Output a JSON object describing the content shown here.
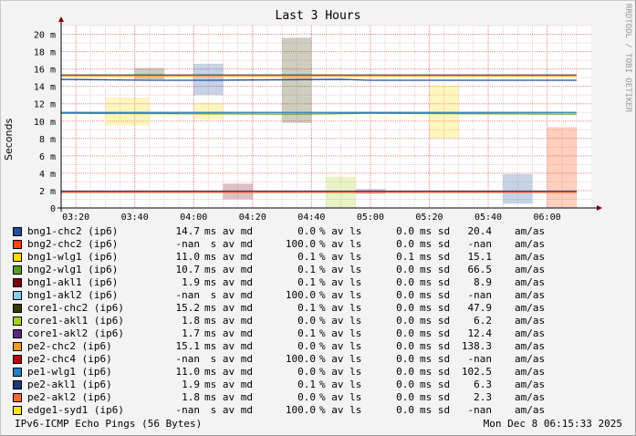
{
  "chart_data": {
    "type": "line",
    "title": "Last 3 Hours",
    "ylabel": "Seconds",
    "xlabel": "",
    "ylim": [
      0,
      21
    ],
    "yticks": [
      {
        "v": 0,
        "t": "0"
      },
      {
        "v": 2,
        "t": "2 m"
      },
      {
        "v": 4,
        "t": "4 m"
      },
      {
        "v": 6,
        "t": "6 m"
      },
      {
        "v": 8,
        "t": "8 m"
      },
      {
        "v": 10,
        "t": "10 m"
      },
      {
        "v": 12,
        "t": "12 m"
      },
      {
        "v": 14,
        "t": "14 m"
      },
      {
        "v": 16,
        "t": "16 m"
      },
      {
        "v": 18,
        "t": "18 m"
      },
      {
        "v": 20,
        "t": "20 m"
      }
    ],
    "xlim": [
      "03:15",
      "06:15"
    ],
    "xticks": [
      "03:20",
      "03:40",
      "04:00",
      "04:20",
      "04:40",
      "05:00",
      "05:20",
      "05:40",
      "06:00"
    ],
    "grid": true,
    "legend_position": "bottom",
    "series": [
      {
        "name": "bng1-chc2 (ip6)",
        "color": "#1f4e9a",
        "median_ms": 14.7,
        "x": [
          "03:15",
          "03:45",
          "04:05",
          "04:50",
          "05:00",
          "06:10"
        ],
        "y": [
          14.8,
          14.7,
          14.7,
          14.8,
          14.7,
          14.7
        ],
        "bands": [
          {
            "from": "04:00",
            "to": "04:10",
            "lo": 13.0,
            "hi": 16.6
          },
          {
            "from": "05:45",
            "to": "05:55",
            "lo": 0.5,
            "hi": 3.9
          }
        ]
      },
      {
        "name": "bng2-chc2 (ip6)",
        "color": "#ff4500",
        "median_ms": null,
        "x": [],
        "y": [],
        "bands": [
          {
            "from": "06:00",
            "to": "06:10",
            "lo": 0.0,
            "hi": 9.3
          }
        ]
      },
      {
        "name": "bng1-wlg1 (ip6)",
        "color": "#ffd800",
        "median_ms": 11.0,
        "x": [
          "03:15",
          "04:40",
          "05:20",
          "06:10"
        ],
        "y": [
          11.0,
          11.0,
          11.0,
          11.0
        ],
        "bands": [
          {
            "from": "03:30",
            "to": "03:45",
            "lo": 9.5,
            "hi": 12.7
          },
          {
            "from": "04:00",
            "to": "04:10",
            "lo": 10.2,
            "hi": 12.1
          },
          {
            "from": "05:20",
            "to": "05:30",
            "lo": 8.0,
            "hi": 14.1
          }
        ]
      },
      {
        "name": "bng2-wlg1 (ip6)",
        "color": "#5c9a2a",
        "median_ms": 10.7,
        "x": [
          "03:15",
          "04:35",
          "05:00",
          "06:10"
        ],
        "y": [
          10.9,
          10.8,
          10.9,
          10.8
        ],
        "bands": []
      },
      {
        "name": "bng1-akl1 (ip6)",
        "color": "#7a0010",
        "median_ms": 1.9,
        "x": [
          "03:15",
          "04:30",
          "05:30",
          "06:10"
        ],
        "y": [
          1.9,
          1.9,
          1.9,
          1.9
        ],
        "bands": [
          {
            "from": "04:10",
            "to": "04:20",
            "lo": 1.0,
            "hi": 2.8
          }
        ]
      },
      {
        "name": "bng1-akl2 (ip6)",
        "color": "#8fc8f0",
        "median_ms": null,
        "x": [],
        "y": [],
        "bands": []
      },
      {
        "name": "core1-chc2 (ip6)",
        "color": "#3a3a00",
        "median_ms": 15.2,
        "x": [
          "03:15",
          "04:50",
          "05:00",
          "06:10"
        ],
        "y": [
          15.3,
          15.3,
          15.3,
          15.3
        ],
        "bands": [
          {
            "from": "04:30",
            "to": "04:40",
            "lo": 9.8,
            "hi": 19.6
          },
          {
            "from": "03:40",
            "to": "03:50",
            "lo": 14.8,
            "hi": 16.1
          }
        ]
      },
      {
        "name": "core1-akl1 (ip6)",
        "color": "#a8d020",
        "median_ms": 1.8,
        "x": [
          "03:15",
          "06:10"
        ],
        "y": [
          1.8,
          1.8
        ],
        "bands": [
          {
            "from": "04:45",
            "to": "04:55",
            "lo": 0.0,
            "hi": 3.6
          }
        ]
      },
      {
        "name": "core1-akl2 (ip6)",
        "color": "#5a2a7a",
        "median_ms": 1.7,
        "x": [
          "03:15",
          "06:10"
        ],
        "y": [
          1.8,
          1.8
        ],
        "bands": [
          {
            "from": "04:55",
            "to": "05:05",
            "lo": 1.6,
            "hi": 2.2
          }
        ]
      },
      {
        "name": "pe2-chc2 (ip6)",
        "color": "#ff9a20",
        "median_ms": 15.1,
        "x": [
          "03:15",
          "06:10"
        ],
        "y": [
          15.2,
          15.2
        ],
        "bands": []
      },
      {
        "name": "pe2-chc4 (ip6)",
        "color": "#c00000",
        "median_ms": null,
        "x": [],
        "y": [],
        "bands": []
      },
      {
        "name": "pe1-wlg1 (ip6)",
        "color": "#2080c8",
        "median_ms": 11.0,
        "x": [
          "03:15",
          "06:10"
        ],
        "y": [
          11.0,
          11.0
        ],
        "bands": []
      },
      {
        "name": "pe2-akl1 (ip6)",
        "color": "#1a3a7a",
        "median_ms": 1.9,
        "x": [
          "03:15",
          "06:10"
        ],
        "y": [
          1.9,
          1.9
        ],
        "bands": []
      },
      {
        "name": "pe2-akl2 (ip6)",
        "color": "#ff6a30",
        "median_ms": 1.8,
        "x": [
          "03:15",
          "06:10"
        ],
        "y": [
          1.8,
          1.8
        ],
        "bands": []
      },
      {
        "name": "edge1-syd1 (ip6)",
        "color": "#ffe030",
        "median_ms": null,
        "x": [],
        "y": [],
        "bands": []
      }
    ]
  },
  "watermark": "RRDTOOL / TOBI OETIKER",
  "legend": [
    {
      "name": "bng1-chc2 (ip6)",
      "color": "#1f4e9a",
      "md": "14.7",
      "md_u": "ms av md",
      "ls": "0.0",
      "ls_u": "% av ls",
      "sd": "0.0",
      "sd_u": "ms sd",
      "amas": "20.4",
      "amas_u": "am/as"
    },
    {
      "name": "bng2-chc2 (ip6)",
      "color": "#ff4500",
      "md": "-nan",
      "md_u": " s av md",
      "ls": "100.0",
      "ls_u": "% av ls",
      "sd": "0.0",
      "sd_u": "ms sd",
      "amas": "-nan",
      "amas_u": "am/as"
    },
    {
      "name": "bng1-wlg1 (ip6)",
      "color": "#ffd800",
      "md": "11.0",
      "md_u": "ms av md",
      "ls": "0.1",
      "ls_u": "% av ls",
      "sd": "0.1",
      "sd_u": "ms sd",
      "amas": "15.1",
      "amas_u": "am/as"
    },
    {
      "name": "bng2-wlg1 (ip6)",
      "color": "#5c9a2a",
      "md": "10.7",
      "md_u": "ms av md",
      "ls": "0.1",
      "ls_u": "% av ls",
      "sd": "0.0",
      "sd_u": "ms sd",
      "amas": "66.5",
      "amas_u": "am/as"
    },
    {
      "name": "bng1-akl1 (ip6)",
      "color": "#7a0010",
      "md": "1.9",
      "md_u": "ms av md",
      "ls": "0.1",
      "ls_u": "% av ls",
      "sd": "0.0",
      "sd_u": "ms sd",
      "amas": "8.9",
      "amas_u": "am/as"
    },
    {
      "name": "bng1-akl2 (ip6)",
      "color": "#8fc8f0",
      "md": "-nan",
      "md_u": " s av md",
      "ls": "100.0",
      "ls_u": "% av ls",
      "sd": "0.0",
      "sd_u": "ms sd",
      "amas": "-nan",
      "amas_u": "am/as"
    },
    {
      "name": "core1-chc2 (ip6)",
      "color": "#3a3a00",
      "md": "15.2",
      "md_u": "ms av md",
      "ls": "0.1",
      "ls_u": "% av ls",
      "sd": "0.0",
      "sd_u": "ms sd",
      "amas": "47.9",
      "amas_u": "am/as"
    },
    {
      "name": "core1-akl1 (ip6)",
      "color": "#a8d020",
      "md": "1.8",
      "md_u": "ms av md",
      "ls": "0.0",
      "ls_u": "% av ls",
      "sd": "0.0",
      "sd_u": "ms sd",
      "amas": "6.2",
      "amas_u": "am/as"
    },
    {
      "name": "core1-akl2 (ip6)",
      "color": "#5a2a7a",
      "md": "1.7",
      "md_u": "ms av md",
      "ls": "0.1",
      "ls_u": "% av ls",
      "sd": "0.0",
      "sd_u": "ms sd",
      "amas": "12.4",
      "amas_u": "am/as"
    },
    {
      "name": "pe2-chc2 (ip6)",
      "color": "#ff9a20",
      "md": "15.1",
      "md_u": "ms av md",
      "ls": "0.0",
      "ls_u": "% av ls",
      "sd": "0.0",
      "sd_u": "ms sd",
      "amas": "138.3",
      "amas_u": "am/as"
    },
    {
      "name": "pe2-chc4 (ip6)",
      "color": "#c00000",
      "md": "-nan",
      "md_u": " s av md",
      "ls": "100.0",
      "ls_u": "% av ls",
      "sd": "0.0",
      "sd_u": "ms sd",
      "amas": "-nan",
      "amas_u": "am/as"
    },
    {
      "name": "pe1-wlg1 (ip6)",
      "color": "#2080c8",
      "md": "11.0",
      "md_u": "ms av md",
      "ls": "0.0",
      "ls_u": "% av ls",
      "sd": "0.0",
      "sd_u": "ms sd",
      "amas": "102.5",
      "amas_u": "am/as"
    },
    {
      "name": "pe2-akl1 (ip6)",
      "color": "#1a3a7a",
      "md": "1.9",
      "md_u": "ms av md",
      "ls": "0.1",
      "ls_u": "% av ls",
      "sd": "0.0",
      "sd_u": "ms sd",
      "amas": "6.3",
      "amas_u": "am/as"
    },
    {
      "name": "pe2-akl2 (ip6)",
      "color": "#ff6a30",
      "md": "1.8",
      "md_u": "ms av md",
      "ls": "0.0",
      "ls_u": "% av ls",
      "sd": "0.0",
      "sd_u": "ms sd",
      "amas": "2.3",
      "amas_u": "am/as"
    },
    {
      "name": "edge1-syd1 (ip6)",
      "color": "#ffe030",
      "md": "-nan",
      "md_u": " s av md",
      "ls": "100.0",
      "ls_u": "% av ls",
      "sd": "0.0",
      "sd_u": "ms sd",
      "amas": "-nan",
      "amas_u": "am/as"
    }
  ],
  "footer": {
    "left": "IPv6-ICMP Echo Pings (56 Bytes)",
    "right": "Mon Dec  8 06:15:33 2025"
  }
}
